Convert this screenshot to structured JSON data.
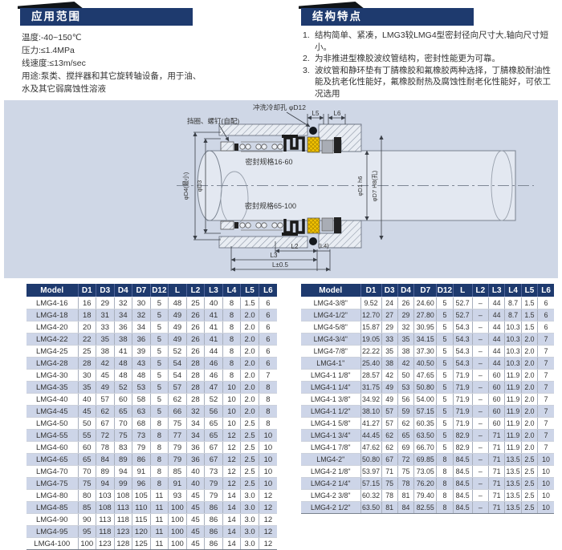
{
  "application": {
    "title": "应用范围",
    "lines": [
      "温度:-40~150℃",
      "压力:≤1.4MPa",
      "线速度:≤13m/sec",
      "用途:泵类、搅拌器和其它旋转轴设备，用于油、",
      "水及其它弱腐蚀性溶液"
    ]
  },
  "features": {
    "title": "结构特点",
    "items": [
      {
        "num": "1.",
        "text": "结构简单、紧凑，LMG3较LMG4型密封径向尺寸大,轴向尺寸短小。"
      },
      {
        "num": "2.",
        "text": "为非推进型橡胶波纹管结构，密封性能更为可靠。"
      },
      {
        "num": "3.",
        "text": "波纹管和静环垫有丁腈橡胶和氟橡胶两种选择，丁腈橡胶耐油性能及抗老化性能好，氟橡胶耐热及腐蚀性耐老化性能好，可依工况选用"
      }
    ]
  },
  "diagram": {
    "labels": {
      "retainer": "挡圈、螺钉(自配)",
      "flush_hole": "冲洗冷却孔 φD12",
      "spec_small": "密封规格16-60",
      "spec_large": "密封规格65-100",
      "d4": "φD4(最小)",
      "d3": "φD3",
      "d1": "φD1 h6",
      "d7": "φD7 H8(孔)",
      "l5": "L5",
      "l6": "L6",
      "l2": "L2",
      "l4": "(L4)",
      "l3": "L3",
      "l_tol": "L±0.5"
    }
  },
  "tables": {
    "metric": {
      "columns": [
        "Model",
        "D1",
        "D3",
        "D4",
        "D7",
        "D12",
        "L",
        "L2",
        "L3",
        "L4",
        "L5",
        "L6"
      ],
      "rows": [
        [
          "LMG4-16",
          "16",
          "29",
          "32",
          "30",
          "5",
          "48",
          "25",
          "40",
          "8",
          "1.5",
          "6"
        ],
        [
          "LMG4-18",
          "18",
          "31",
          "34",
          "32",
          "5",
          "49",
          "26",
          "41",
          "8",
          "2.0",
          "6"
        ],
        [
          "LMG4-20",
          "20",
          "33",
          "36",
          "34",
          "5",
          "49",
          "26",
          "41",
          "8",
          "2.0",
          "6"
        ],
        [
          "LMG4-22",
          "22",
          "35",
          "38",
          "36",
          "5",
          "49",
          "26",
          "41",
          "8",
          "2.0",
          "6"
        ],
        [
          "LMG4-25",
          "25",
          "38",
          "41",
          "39",
          "5",
          "52",
          "26",
          "44",
          "8",
          "2.0",
          "6"
        ],
        [
          "LMG4-28",
          "28",
          "42",
          "48",
          "43",
          "5",
          "54",
          "28",
          "46",
          "8",
          "2.0",
          "6"
        ],
        [
          "LMG4-30",
          "30",
          "45",
          "48",
          "48",
          "5",
          "54",
          "28",
          "46",
          "8",
          "2.0",
          "7"
        ],
        [
          "LMG4-35",
          "35",
          "49",
          "52",
          "53",
          "5",
          "57",
          "28",
          "47",
          "10",
          "2.0",
          "8"
        ],
        [
          "LMG4-40",
          "40",
          "57",
          "60",
          "58",
          "5",
          "62",
          "28",
          "52",
          "10",
          "2.0",
          "8"
        ],
        [
          "LMG4-45",
          "45",
          "62",
          "65",
          "63",
          "5",
          "66",
          "32",
          "56",
          "10",
          "2.0",
          "8"
        ],
        [
          "LMG4-50",
          "50",
          "67",
          "70",
          "68",
          "8",
          "75",
          "34",
          "65",
          "10",
          "2.5",
          "8"
        ],
        [
          "LMG4-55",
          "55",
          "72",
          "75",
          "73",
          "8",
          "77",
          "34",
          "65",
          "12",
          "2.5",
          "10"
        ],
        [
          "LMG4-60",
          "60",
          "78",
          "83",
          "79",
          "8",
          "79",
          "36",
          "67",
          "12",
          "2.5",
          "10"
        ],
        [
          "LMG4-65",
          "65",
          "84",
          "89",
          "86",
          "8",
          "79",
          "36",
          "67",
          "12",
          "2.5",
          "10"
        ],
        [
          "LMG4-70",
          "70",
          "89",
          "94",
          "91",
          "8",
          "85",
          "40",
          "73",
          "12",
          "2.5",
          "10"
        ],
        [
          "LMG4-75",
          "75",
          "94",
          "99",
          "96",
          "8",
          "91",
          "40",
          "79",
          "12",
          "2.5",
          "10"
        ],
        [
          "LMG4-80",
          "80",
          "103",
          "108",
          "105",
          "11",
          "93",
          "45",
          "79",
          "14",
          "3.0",
          "12"
        ],
        [
          "LMG4-85",
          "85",
          "108",
          "113",
          "110",
          "11",
          "100",
          "45",
          "86",
          "14",
          "3.0",
          "12"
        ],
        [
          "LMG4-90",
          "90",
          "113",
          "118",
          "115",
          "11",
          "100",
          "45",
          "86",
          "14",
          "3.0",
          "12"
        ],
        [
          "LMG4-95",
          "95",
          "118",
          "123",
          "120",
          "11",
          "100",
          "45",
          "86",
          "14",
          "3.0",
          "12"
        ],
        [
          "LMG4-100",
          "100",
          "123",
          "128",
          "125",
          "11",
          "100",
          "45",
          "86",
          "14",
          "3.0",
          "12"
        ]
      ]
    },
    "inch": {
      "columns": [
        "Model",
        "D1",
        "D3",
        "D4",
        "D7",
        "D12",
        "L",
        "L2",
        "L3",
        "L4",
        "L5",
        "L6"
      ],
      "rows": [
        [
          "LMG4-3/8\"",
          "9.52",
          "24",
          "26",
          "24.60",
          "5",
          "52.7",
          "–",
          "44",
          "8.7",
          "1.5",
          "6"
        ],
        [
          "LMG4-1/2\"",
          "12.70",
          "27",
          "29",
          "27.80",
          "5",
          "52.7",
          "–",
          "44",
          "8.7",
          "1.5",
          "6"
        ],
        [
          "LMG4-5/8\"",
          "15.87",
          "29",
          "32",
          "30.95",
          "5",
          "54.3",
          "–",
          "44",
          "10.3",
          "1.5",
          "6"
        ],
        [
          "LMG4-3/4\"",
          "19.05",
          "33",
          "35",
          "34.15",
          "5",
          "54.3",
          "–",
          "44",
          "10.3",
          "2.0",
          "7"
        ],
        [
          "LMG4-7/8\"",
          "22.22",
          "35",
          "38",
          "37.30",
          "5",
          "54.3",
          "–",
          "44",
          "10.3",
          "2.0",
          "7"
        ],
        [
          "LMG4-1\"",
          "25.40",
          "38",
          "42",
          "40.50",
          "5",
          "54.3",
          "–",
          "44",
          "10.3",
          "2.0",
          "7"
        ],
        [
          "LMG4-1 1/8\"",
          "28.57",
          "42",
          "50",
          "47.65",
          "5",
          "71.9",
          "–",
          "60",
          "11.9",
          "2.0",
          "7"
        ],
        [
          "LMG4-1 1/4\"",
          "31.75",
          "49",
          "53",
          "50.80",
          "5",
          "71.9",
          "–",
          "60",
          "11.9",
          "2.0",
          "7"
        ],
        [
          "LMG4-1 3/8\"",
          "34.92",
          "49",
          "56",
          "54.00",
          "5",
          "71.9",
          "–",
          "60",
          "11.9",
          "2.0",
          "7"
        ],
        [
          "LMG4-1 1/2\"",
          "38.10",
          "57",
          "59",
          "57.15",
          "5",
          "71.9",
          "–",
          "60",
          "11.9",
          "2.0",
          "7"
        ],
        [
          "LMG4-1 5/8\"",
          "41.27",
          "57",
          "62",
          "60.35",
          "5",
          "71.9",
          "–",
          "60",
          "11.9",
          "2.0",
          "7"
        ],
        [
          "LMG4-1 3/4\"",
          "44.45",
          "62",
          "65",
          "63.50",
          "5",
          "82.9",
          "–",
          "71",
          "11.9",
          "2.0",
          "7"
        ],
        [
          "LMG4-1 7/8\"",
          "47.62",
          "62",
          "69",
          "66.70",
          "5",
          "82.9",
          "–",
          "71",
          "11.9",
          "2.0",
          "7"
        ],
        [
          "LMG4-2\"",
          "50.80",
          "67",
          "72",
          "69.85",
          "8",
          "84.5",
          "–",
          "71",
          "13.5",
          "2.5",
          "10"
        ],
        [
          "LMG4-2 1/8\"",
          "53.97",
          "71",
          "75",
          "73.05",
          "8",
          "84.5",
          "–",
          "71",
          "13.5",
          "2.5",
          "10"
        ],
        [
          "LMG4-2 1/4\"",
          "57.15",
          "75",
          "78",
          "76.20",
          "8",
          "84.5",
          "–",
          "71",
          "13.5",
          "2.5",
          "10"
        ],
        [
          "LMG4-2 3/8\"",
          "60.32",
          "78",
          "81",
          "79.40",
          "8",
          "84.5",
          "–",
          "71",
          "13.5",
          "2.5",
          "10"
        ],
        [
          "LMG4-2 1/2\"",
          "63.50",
          "81",
          "84",
          "82.55",
          "8",
          "84.5",
          "–",
          "71",
          "13.5",
          "2.5",
          "10"
        ]
      ]
    }
  },
  "colors": {
    "header_navy": "#1e3a6e",
    "row_alt_blue": "#cdd5e8",
    "diagram_bg": "#cfd7e6",
    "seal_yellow": "#f2c200",
    "seal_gray": "#a9adb5",
    "bellows_black": "#1a1a1a"
  }
}
